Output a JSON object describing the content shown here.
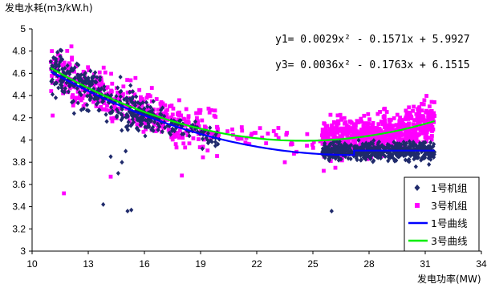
{
  "chart_data": {
    "type": "scatter",
    "ylabel": "发电水耗(m3/kW.h)",
    "xlabel": "发电功率(MW)",
    "xlim": [
      10,
      34
    ],
    "ylim": [
      3,
      5
    ],
    "x_ticks": [
      "10",
      "13",
      "16",
      "19",
      "22",
      "25",
      "28",
      "31",
      "34"
    ],
    "y_ticks": [
      "3",
      "3.2",
      "3.4",
      "3.6",
      "3.8",
      "4",
      "4.2",
      "4.4",
      "4.6",
      "4.8",
      "5"
    ],
    "grid": false,
    "legend_position": "bottom-right",
    "equations": [
      "y1= 0.0029x² - 0.1571x + 5.9927",
      "y3= 0.0036x² - 0.1763x + 6.1515"
    ],
    "series": [
      {
        "name": "1号机组",
        "kind": "scatter",
        "marker": "diamond",
        "color": "#1f2a6b",
        "clusters": [
          {
            "x_range": [
              11,
              16.5
            ],
            "fit": [
              0.0029,
              -0.1571,
              5.9927
            ],
            "spread": 0.09,
            "count": 330
          },
          {
            "x_range": [
              16.5,
              20
            ],
            "fit": [
              0.0029,
              -0.1571,
              5.9927
            ],
            "spread": 0.05,
            "count": 80
          },
          {
            "x_range": [
              25.5,
              31.5
            ],
            "fit": [
              0.0,
              0.0,
              3.9
            ],
            "spread": 0.04,
            "count": 520
          }
        ],
        "outliers": [
          [
            13.8,
            3.42
          ],
          [
            14.6,
            3.7
          ],
          [
            15.1,
            3.36
          ],
          [
            15.3,
            3.37
          ],
          [
            14.2,
            3.85
          ],
          [
            15.0,
            3.9
          ],
          [
            26.0,
            3.36
          ],
          [
            30.5,
            3.76
          ],
          [
            31.2,
            3.78
          ],
          [
            14.8,
            3.8
          ]
        ]
      },
      {
        "name": "3号机组",
        "kind": "scatter",
        "marker": "square",
        "color": "#ff00ff",
        "clusters": [
          {
            "x_range": [
              11,
              20
            ],
            "fit": [
              0.0036,
              -0.1763,
              6.1515
            ],
            "spread": 0.1,
            "count": 420
          },
          {
            "x_range": [
              20,
              26
            ],
            "fit": [
              0.0036,
              -0.1763,
              6.1515
            ],
            "spread": 0.06,
            "count": 40
          },
          {
            "x_range": [
              25.5,
              31.5
            ],
            "fit": [
              0.0036,
              -0.1763,
              6.1515
            ],
            "spread": 0.09,
            "count": 700
          }
        ],
        "outliers": [
          [
            11.7,
            3.52
          ],
          [
            14.2,
            3.67
          ],
          [
            11.1,
            4.22
          ],
          [
            18.0,
            3.68
          ],
          [
            23.5,
            3.8
          ],
          [
            26.2,
            3.75
          ]
        ]
      },
      {
        "name": "1号曲线",
        "kind": "line",
        "color": "#0000ff",
        "coef": [
          0.0029,
          -0.1571,
          5.9927
        ],
        "x_range": [
          11,
          27.2
        ],
        "tail": [
          [
            27.2,
            3.905
          ],
          [
            31.5,
            3.905
          ]
        ]
      },
      {
        "name": "3号曲线",
        "kind": "line",
        "color": "#00ee00",
        "coef": [
          0.0036,
          -0.1763,
          6.1515
        ],
        "x_range": [
          11,
          31.5
        ]
      }
    ]
  }
}
